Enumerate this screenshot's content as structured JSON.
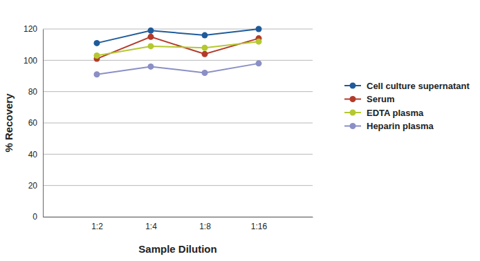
{
  "chart_data": {
    "type": "line",
    "x_label": "Sample Dilution",
    "y_label": "% Recovery",
    "categories": [
      "1:2",
      "1:4",
      "1:8",
      "1:16"
    ],
    "series": [
      {
        "name": "Cell culture supernatant",
        "color": "#1f5b9b",
        "values": [
          111,
          119,
          116,
          120
        ]
      },
      {
        "name": "Serum",
        "color": "#b33a2a",
        "values": [
          101,
          115,
          104,
          114
        ]
      },
      {
        "name": "EDTA plasma",
        "color": "#b4c82f",
        "values": [
          103,
          109,
          108,
          112
        ]
      },
      {
        "name": "Heparin plasma",
        "color": "#8a8fc6",
        "values": [
          91,
          96,
          92,
          98
        ]
      }
    ],
    "ylim": [
      0,
      120
    ],
    "yticks": [
      0,
      20,
      40,
      60,
      80,
      100,
      120
    ],
    "grid": true,
    "legend": "right",
    "marker": "circle",
    "line_style": "solid"
  }
}
